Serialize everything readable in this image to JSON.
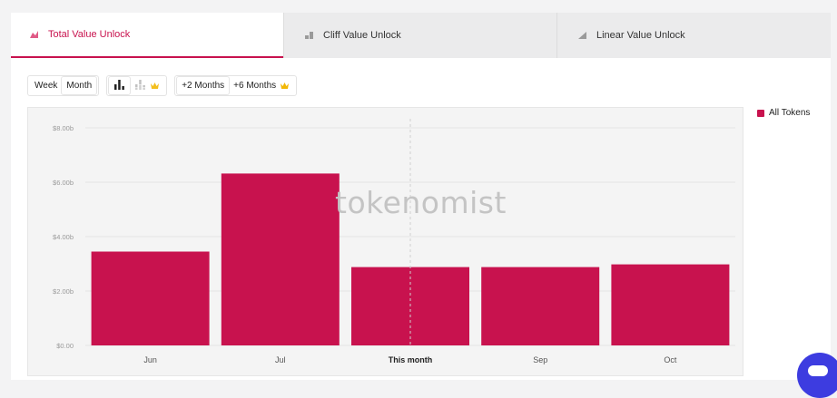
{
  "tabs": [
    {
      "label": "Total Value Unlock",
      "active": true
    },
    {
      "label": "Cliff Value Unlock",
      "active": false
    },
    {
      "label": "Linear Value Unlock",
      "active": false
    }
  ],
  "controls": {
    "period": {
      "week": "Week",
      "month": "Month",
      "selected": "Month"
    },
    "chart_style": {
      "selected": "bar-chart-icon",
      "other": "stacked-chart-icon"
    },
    "range": {
      "plus2": "+2 Months",
      "plus6": "+6 Months",
      "selected": "+2 Months"
    }
  },
  "watermark": "tokenomist",
  "legend": {
    "label": "All Tokens",
    "color": "#c8124e"
  },
  "chart_data": {
    "type": "bar",
    "categories": [
      "Jun",
      "Jul",
      "This month",
      "Sep",
      "Oct"
    ],
    "highlight_category": "This month",
    "series": [
      {
        "name": "All Tokens",
        "values": [
          3.45,
          6.32,
          2.88,
          2.88,
          2.98
        ],
        "color": "#c8124e"
      }
    ],
    "y_ticks": [
      {
        "value": 0,
        "label": "$0.00"
      },
      {
        "value": 2,
        "label": "$2.00b"
      },
      {
        "value": 4,
        "label": "$4.00b"
      },
      {
        "value": 6,
        "label": "$6.00b"
      },
      {
        "value": 8,
        "label": "$8.00b"
      }
    ],
    "ylim": [
      0,
      8
    ],
    "grid": true,
    "legend_position": "top-right",
    "current_marker": "This month"
  }
}
